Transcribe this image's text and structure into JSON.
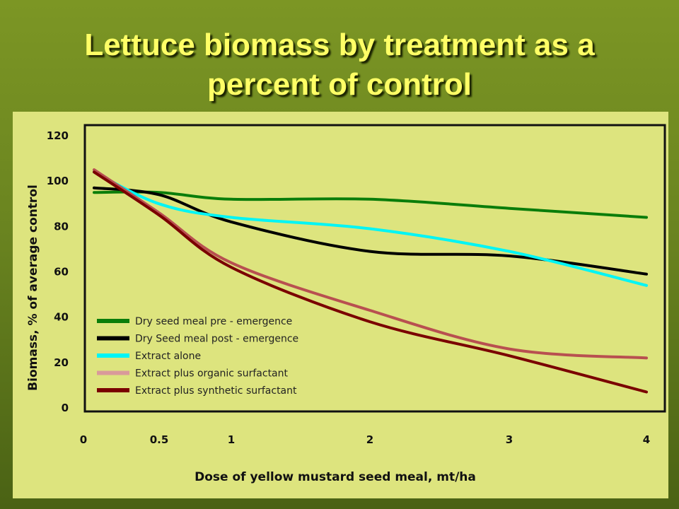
{
  "title_line1": "Lettuce biomass by treatment as a",
  "title_line2": "percent of control",
  "chart_data": {
    "type": "line",
    "title": "Lettuce biomass by treatment as a percent of control",
    "xlabel": "Dose of yellow mustard seed meal, mt/ha",
    "ylabel": "Biomass, % of average control",
    "x_ticks": [
      "0",
      "0.5",
      "1",
      "2",
      "3",
      "4"
    ],
    "y_ticks": [
      "0",
      "20",
      "40",
      "60",
      "80",
      "100",
      "120"
    ],
    "ylim": [
      0,
      120
    ],
    "grid": false,
    "legend_position": "bottom-left",
    "series": [
      {
        "name": "Dry seed meal pre - emergence",
        "color": "#0a7d0a",
        "points": [
          [
            0.07,
            95
          ],
          [
            0.5,
            95
          ],
          [
            1,
            92
          ],
          [
            2,
            92
          ],
          [
            3,
            88
          ],
          [
            4,
            84
          ]
        ]
      },
      {
        "name": "Dry Seed meal post - emergence",
        "color": "#000000",
        "points": [
          [
            0.07,
            97
          ],
          [
            0.5,
            94
          ],
          [
            1,
            82
          ],
          [
            2,
            69
          ],
          [
            3,
            67
          ],
          [
            4,
            59
          ]
        ]
      },
      {
        "name": "Extract alone",
        "color": "#00f5f5",
        "points": [
          [
            0.07,
            104
          ],
          [
            0.5,
            90
          ],
          [
            1,
            84
          ],
          [
            2,
            79
          ],
          [
            3,
            69
          ],
          [
            4,
            54
          ]
        ]
      },
      {
        "name": "Extract plus organic surfactant",
        "color": "#b85050",
        "points": [
          [
            0.07,
            105
          ],
          [
            0.5,
            86
          ],
          [
            1,
            64
          ],
          [
            2,
            43
          ],
          [
            3,
            26
          ],
          [
            4,
            22
          ]
        ]
      },
      {
        "name": "Extract plus synthetic surfactant",
        "color": "#7a0000",
        "points": [
          [
            0.07,
            104
          ],
          [
            0.5,
            85
          ],
          [
            1,
            62
          ],
          [
            2,
            38
          ],
          [
            3,
            23
          ],
          [
            4,
            7
          ]
        ]
      }
    ],
    "legend_swatches": [
      "#0a7d0a",
      "#000000",
      "#00f5f5",
      "#d99a9a",
      "#7a0000"
    ]
  }
}
